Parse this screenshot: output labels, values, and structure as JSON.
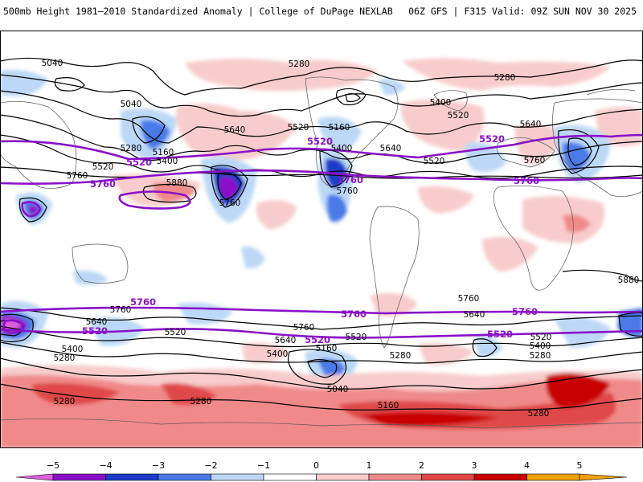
{
  "header": {
    "title_left": "500mb Height 1981–2010 Standardized Anomaly | College of DuPage NEXLAB",
    "title_right": "06Z GFS | F315 Valid: 09Z SUN NOV 30 2025"
  },
  "palette": {
    "neg5": "#e060e0",
    "neg4": "#8a10c8",
    "neg3": "#1c3cc8",
    "neg2": "#4a7ae8",
    "neg1": "#bcd8f6",
    "zero": "#ffffff",
    "pos1": "#f8cccc",
    "pos2": "#f08a8a",
    "pos3": "#e04848",
    "pos4": "#c80000",
    "pos5": "#f0a000",
    "contour": "#000000",
    "highlight": "#8a10c8",
    "coast": "#555555"
  },
  "colorbar": {
    "ticks": [
      "−5",
      "−4",
      "−3",
      "−2",
      "−1",
      "0",
      "1",
      "2",
      "3",
      "4",
      "5"
    ]
  },
  "contour_labels": [
    {
      "text": "5040",
      "kind": "black"
    },
    {
      "text": "5280",
      "kind": "black"
    },
    {
      "text": "5280",
      "kind": "black"
    },
    {
      "text": "5040",
      "kind": "black"
    },
    {
      "text": "5400",
      "kind": "black"
    },
    {
      "text": "5520",
      "kind": "black"
    },
    {
      "text": "5160",
      "kind": "black"
    },
    {
      "text": "5640",
      "kind": "black"
    },
    {
      "text": "5520",
      "kind": "black"
    },
    {
      "text": "5640",
      "kind": "black"
    },
    {
      "text": "5280",
      "kind": "black"
    },
    {
      "text": "5160",
      "kind": "black"
    },
    {
      "text": "5400",
      "kind": "black"
    },
    {
      "text": "5520",
      "kind": "black"
    },
    {
      "text": "5400",
      "kind": "black"
    },
    {
      "text": "5640",
      "kind": "black"
    },
    {
      "text": "5760",
      "kind": "black"
    },
    {
      "text": "5520",
      "kind": "black"
    },
    {
      "text": "5760",
      "kind": "black"
    },
    {
      "text": "5880",
      "kind": "black"
    },
    {
      "text": "5760",
      "kind": "black"
    },
    {
      "text": "5760",
      "kind": "black"
    },
    {
      "text": "5880",
      "kind": "black"
    },
    {
      "text": "5760",
      "kind": "black"
    },
    {
      "text": "5640",
      "kind": "black"
    },
    {
      "text": "5400",
      "kind": "black"
    },
    {
      "text": "5280",
      "kind": "black"
    },
    {
      "text": "5520",
      "kind": "black"
    },
    {
      "text": "5760",
      "kind": "black"
    },
    {
      "text": "5640",
      "kind": "black"
    },
    {
      "text": "5400",
      "kind": "black"
    },
    {
      "text": "5160",
      "kind": "black"
    },
    {
      "text": "5520",
      "kind": "black"
    },
    {
      "text": "5280",
      "kind": "black"
    },
    {
      "text": "5040",
      "kind": "black"
    },
    {
      "text": "5760",
      "kind": "black"
    },
    {
      "text": "5640",
      "kind": "black"
    },
    {
      "text": "5520",
      "kind": "black"
    },
    {
      "text": "5400",
      "kind": "black"
    },
    {
      "text": "5280",
      "kind": "black"
    },
    {
      "text": "5280",
      "kind": "black"
    },
    {
      "text": "5280",
      "kind": "black"
    },
    {
      "text": "5160",
      "kind": "black"
    },
    {
      "text": "5280",
      "kind": "black"
    },
    {
      "text": "5520",
      "kind": "purple"
    },
    {
      "text": "5520",
      "kind": "purple"
    },
    {
      "text": "5520",
      "kind": "purple"
    },
    {
      "text": "5760",
      "kind": "purple"
    },
    {
      "text": "5760",
      "kind": "purple"
    },
    {
      "text": "5760",
      "kind": "purple"
    },
    {
      "text": "5760",
      "kind": "purple"
    },
    {
      "text": "5760",
      "kind": "purple"
    },
    {
      "text": "5760",
      "kind": "purple"
    },
    {
      "text": "5520",
      "kind": "purple"
    },
    {
      "text": "5520",
      "kind": "purple"
    },
    {
      "text": "5520",
      "kind": "purple"
    }
  ]
}
